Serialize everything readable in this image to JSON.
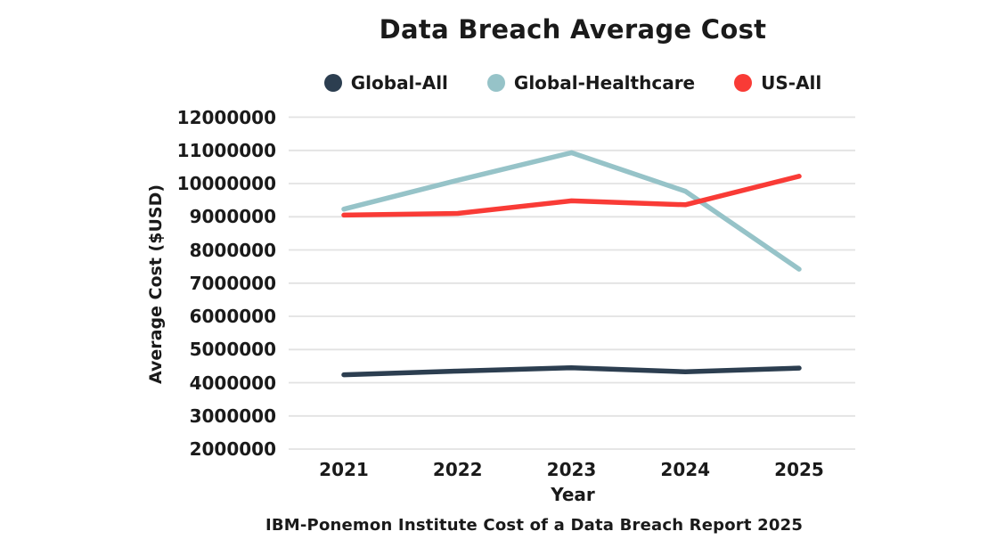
{
  "page": {
    "background": "#ffffff",
    "text_color": "#1a1a1a"
  },
  "chart_data": {
    "type": "line",
    "title": "Data Breach Average Cost",
    "xlabel": "Year",
    "ylabel": "Average Cost ($USD)",
    "caption": "IBM-Ponemon Institute Cost of a Data Breach Report 2025",
    "categories": [
      "2021",
      "2022",
      "2023",
      "2024",
      "2025"
    ],
    "series": [
      {
        "name": "Global-All",
        "color": "#2c3e50",
        "values": [
          4240000,
          4350000,
          4450000,
          4330000,
          4440000
        ]
      },
      {
        "name": "Global-Healthcare",
        "color": "#96c3c8",
        "values": [
          9230000,
          10100000,
          10930000,
          9770000,
          7420000
        ]
      },
      {
        "name": "US-All",
        "color": "#f93b36",
        "values": [
          9050000,
          9100000,
          9480000,
          9360000,
          10220000
        ]
      }
    ],
    "y_ticks": [
      2000000,
      3000000,
      4000000,
      5000000,
      6000000,
      7000000,
      8000000,
      9000000,
      10000000,
      11000000,
      12000000
    ],
    "ylim": [
      2000000,
      12000000
    ],
    "grid": true,
    "gridline_color": "#e2e2e2",
    "legend_position": "top",
    "line_width": 5.5
  }
}
